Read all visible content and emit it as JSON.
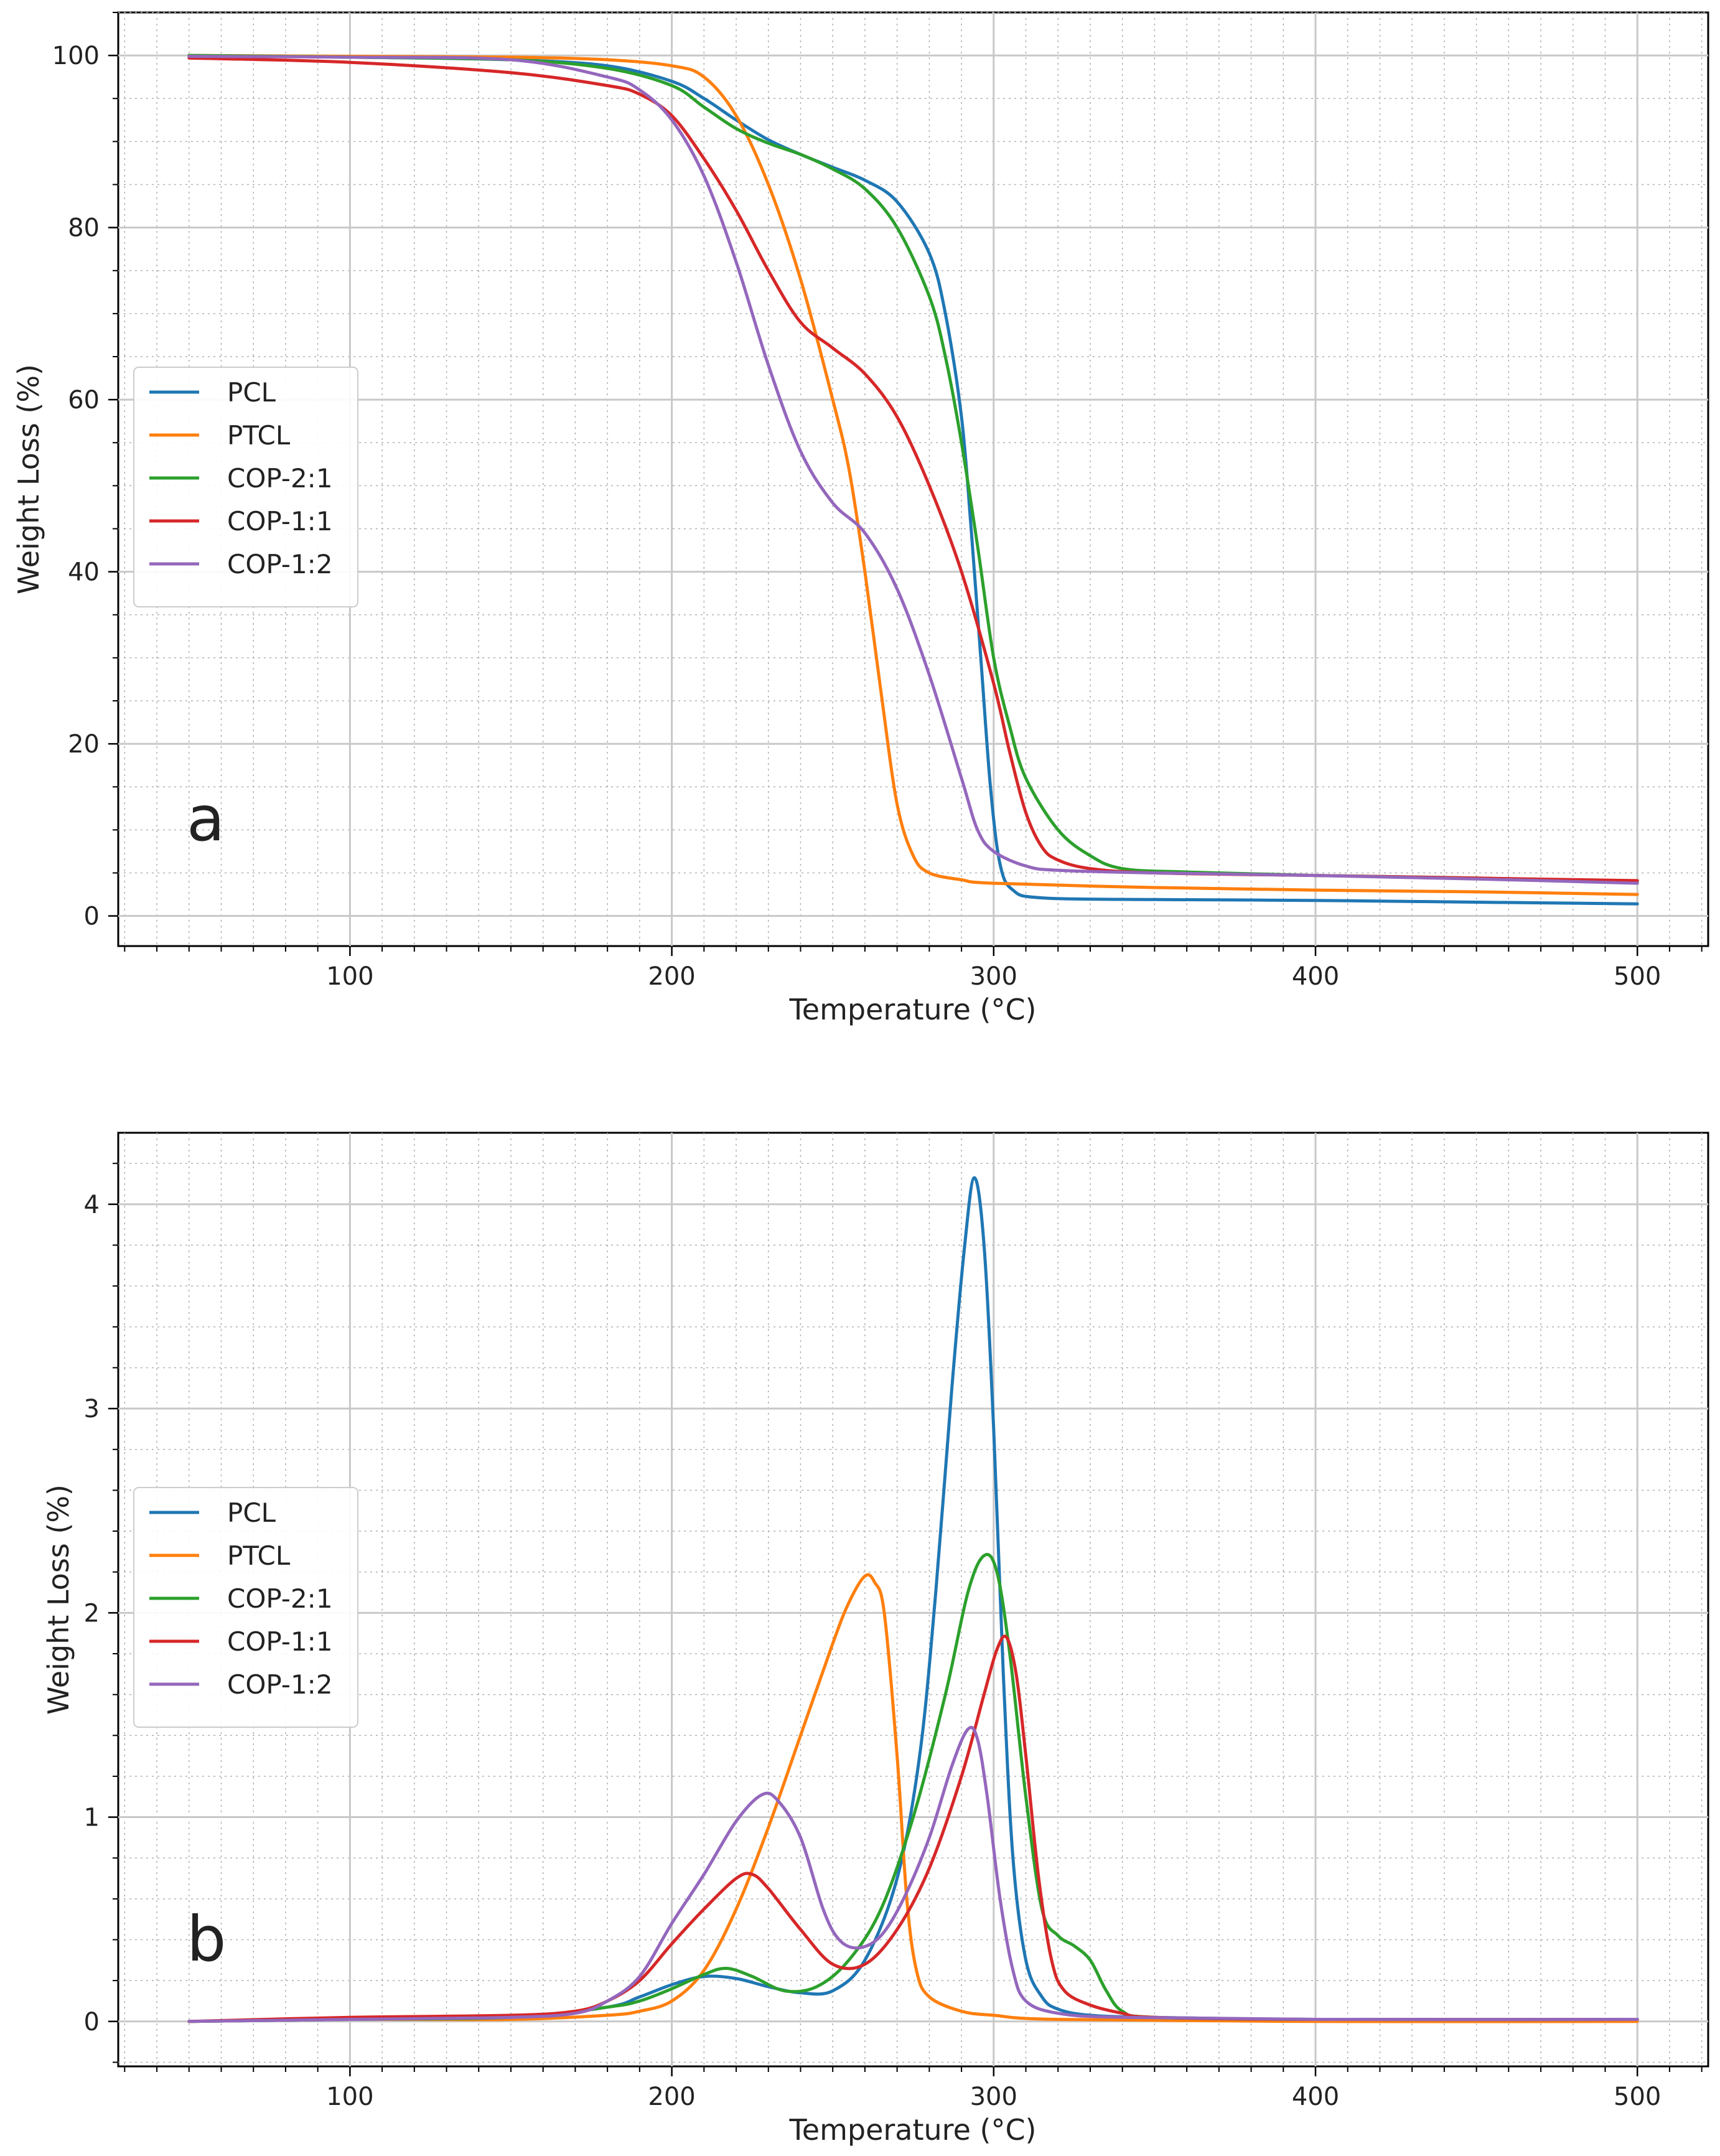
{
  "chart_data": [
    {
      "type": "line",
      "panel_label": "a",
      "xlabel": "Temperature (°C)",
      "ylabel": "Weight Loss (%)",
      "xlim": [
        28,
        522
      ],
      "ylim": [
        -3.5,
        105
      ],
      "x_ticks": [
        100,
        200,
        300,
        400,
        500
      ],
      "y_ticks": [
        0,
        20,
        40,
        60,
        80,
        100
      ],
      "x_minor_step": 10,
      "y_minor_step": 5,
      "grid": true,
      "legend_position": "center-left",
      "series": [
        {
          "name": "PCL",
          "color": "#1f77b4",
          "points": [
            [
              50,
              100
            ],
            [
              100,
              99.8
            ],
            [
              150,
              99.5
            ],
            [
              180,
              98.8
            ],
            [
              200,
              97
            ],
            [
              210,
              95
            ],
            [
              220,
              92.5
            ],
            [
              230,
              90.2
            ],
            [
              240,
              88.5
            ],
            [
              250,
              87
            ],
            [
              260,
              85.5
            ],
            [
              270,
              83
            ],
            [
              280,
              77
            ],
            [
              285,
              70
            ],
            [
              290,
              58
            ],
            [
              293,
              45
            ],
            [
              296,
              30
            ],
            [
              299,
              15
            ],
            [
              302,
              6
            ],
            [
              306,
              3
            ],
            [
              315,
              2.1
            ],
            [
              350,
              1.9
            ],
            [
              400,
              1.8
            ],
            [
              450,
              1.6
            ],
            [
              500,
              1.4
            ]
          ]
        },
        {
          "name": "PTCL",
          "color": "#ff7f0e",
          "points": [
            [
              50,
              100
            ],
            [
              100,
              99.9
            ],
            [
              150,
              99.8
            ],
            [
              180,
              99.5
            ],
            [
              200,
              98.8
            ],
            [
              210,
              97.5
            ],
            [
              220,
              93
            ],
            [
              230,
              85
            ],
            [
              240,
              74
            ],
            [
              250,
              60
            ],
            [
              255,
              52
            ],
            [
              260,
              40
            ],
            [
              265,
              26
            ],
            [
              270,
              13
            ],
            [
              275,
              7
            ],
            [
              280,
              5
            ],
            [
              290,
              4.2
            ],
            [
              300,
              3.8
            ],
            [
              350,
              3.3
            ],
            [
              400,
              3
            ],
            [
              450,
              2.8
            ],
            [
              500,
              2.5
            ]
          ]
        },
        {
          "name": "COP-2:1",
          "color": "#2ca02c",
          "points": [
            [
              50,
              100
            ],
            [
              100,
              99.8
            ],
            [
              150,
              99.5
            ],
            [
              180,
              98.5
            ],
            [
              200,
              96.5
            ],
            [
              210,
              94
            ],
            [
              220,
              91.5
            ],
            [
              230,
              89.8
            ],
            [
              240,
              88.5
            ],
            [
              250,
              86.8
            ],
            [
              260,
              84.5
            ],
            [
              270,
              80
            ],
            [
              280,
              72
            ],
            [
              285,
              65
            ],
            [
              290,
              55
            ],
            [
              295,
              43
            ],
            [
              300,
              30
            ],
            [
              305,
              22
            ],
            [
              310,
              16
            ],
            [
              320,
              10
            ],
            [
              330,
              7
            ],
            [
              340,
              5.5
            ],
            [
              360,
              5.1
            ],
            [
              400,
              4.7
            ],
            [
              450,
              4.4
            ],
            [
              500,
              3.9
            ]
          ]
        },
        {
          "name": "COP-1:1",
          "color": "#d62728",
          "points": [
            [
              50,
              99.7
            ],
            [
              100,
              99.2
            ],
            [
              150,
              98
            ],
            [
              180,
              96.5
            ],
            [
              190,
              95.5
            ],
            [
              200,
              93
            ],
            [
              210,
              88
            ],
            [
              220,
              82
            ],
            [
              230,
              75
            ],
            [
              240,
              69
            ],
            [
              250,
              66
            ],
            [
              260,
              63
            ],
            [
              270,
              58
            ],
            [
              280,
              50
            ],
            [
              290,
              40
            ],
            [
              300,
              27
            ],
            [
              305,
              19
            ],
            [
              310,
              12
            ],
            [
              315,
              8
            ],
            [
              320,
              6.5
            ],
            [
              330,
              5.5
            ],
            [
              350,
              5
            ],
            [
              400,
              4.7
            ],
            [
              450,
              4.4
            ],
            [
              500,
              4.1
            ]
          ]
        },
        {
          "name": "COP-1:2",
          "color": "#9467bd",
          "points": [
            [
              50,
              99.9
            ],
            [
              100,
              99.8
            ],
            [
              150,
              99.5
            ],
            [
              180,
              97.5
            ],
            [
              190,
              96
            ],
            [
              200,
              92.5
            ],
            [
              210,
              86
            ],
            [
              220,
              76
            ],
            [
              230,
              64
            ],
            [
              240,
              54
            ],
            [
              250,
              48
            ],
            [
              260,
              44.5
            ],
            [
              270,
              38
            ],
            [
              280,
              28
            ],
            [
              290,
              16
            ],
            [
              295,
              10
            ],
            [
              300,
              7.5
            ],
            [
              310,
              5.8
            ],
            [
              320,
              5.3
            ],
            [
              350,
              5
            ],
            [
              400,
              4.7
            ],
            [
              450,
              4.3
            ],
            [
              500,
              3.8
            ]
          ]
        }
      ]
    },
    {
      "type": "line",
      "panel_label": "b",
      "xlabel": "Temperature (°C)",
      "ylabel": "Weight Loss (%)",
      "xlim": [
        28,
        522
      ],
      "ylim": [
        -0.22,
        4.35
      ],
      "x_ticks": [
        100,
        200,
        300,
        400,
        500
      ],
      "y_ticks": [
        0,
        1,
        2,
        3,
        4
      ],
      "x_minor_step": 10,
      "y_minor_step": 0.2,
      "grid": true,
      "legend_position": "center-left",
      "series": [
        {
          "name": "PCL",
          "color": "#1f77b4",
          "points": [
            [
              50,
              0
            ],
            [
              100,
              0.01
            ],
            [
              150,
              0.02
            ],
            [
              180,
              0.07
            ],
            [
              190,
              0.12
            ],
            [
              200,
              0.18
            ],
            [
              210,
              0.22
            ],
            [
              220,
              0.21
            ],
            [
              230,
              0.17
            ],
            [
              240,
              0.14
            ],
            [
              250,
              0.15
            ],
            [
              260,
              0.3
            ],
            [
              270,
              0.7
            ],
            [
              277,
              1.3
            ],
            [
              282,
              2.1
            ],
            [
              287,
              3.1
            ],
            [
              291,
              3.8
            ],
            [
              294,
              4.13
            ],
            [
              297,
              3.8
            ],
            [
              300,
              2.9
            ],
            [
              303,
              1.7
            ],
            [
              306,
              0.8
            ],
            [
              310,
              0.3
            ],
            [
              315,
              0.12
            ],
            [
              320,
              0.06
            ],
            [
              330,
              0.03
            ],
            [
              350,
              0.02
            ],
            [
              400,
              0.01
            ],
            [
              500,
              0.01
            ]
          ]
        },
        {
          "name": "PTCL",
          "color": "#ff7f0e",
          "points": [
            [
              50,
              0
            ],
            [
              100,
              0.01
            ],
            [
              150,
              0.01
            ],
            [
              180,
              0.03
            ],
            [
              190,
              0.05
            ],
            [
              200,
              0.1
            ],
            [
              210,
              0.25
            ],
            [
              220,
              0.55
            ],
            [
              230,
              0.95
            ],
            [
              240,
              1.4
            ],
            [
              250,
              1.85
            ],
            [
              255,
              2.05
            ],
            [
              260,
              2.18
            ],
            [
              263,
              2.15
            ],
            [
              266,
              2.0
            ],
            [
              270,
              1.3
            ],
            [
              273,
              0.6
            ],
            [
              276,
              0.25
            ],
            [
              280,
              0.12
            ],
            [
              290,
              0.05
            ],
            [
              300,
              0.03
            ],
            [
              320,
              0.01
            ],
            [
              400,
              0
            ],
            [
              500,
              0
            ]
          ]
        },
        {
          "name": "COP-2:1",
          "color": "#2ca02c",
          "points": [
            [
              50,
              0
            ],
            [
              100,
              0.01
            ],
            [
              150,
              0.02
            ],
            [
              180,
              0.07
            ],
            [
              190,
              0.1
            ],
            [
              200,
              0.16
            ],
            [
              210,
              0.23
            ],
            [
              217,
              0.26
            ],
            [
              225,
              0.22
            ],
            [
              235,
              0.15
            ],
            [
              245,
              0.17
            ],
            [
              255,
              0.3
            ],
            [
              265,
              0.55
            ],
            [
              275,
              1.0
            ],
            [
              285,
              1.6
            ],
            [
              292,
              2.1
            ],
            [
              297,
              2.28
            ],
            [
              301,
              2.2
            ],
            [
              305,
              1.8
            ],
            [
              310,
              1.1
            ],
            [
              315,
              0.55
            ],
            [
              320,
              0.42
            ],
            [
              325,
              0.37
            ],
            [
              330,
              0.3
            ],
            [
              335,
              0.15
            ],
            [
              340,
              0.05
            ],
            [
              350,
              0.02
            ],
            [
              400,
              0.01
            ],
            [
              500,
              0.01
            ]
          ]
        },
        {
          "name": "COP-1:1",
          "color": "#d62728",
          "points": [
            [
              50,
              0
            ],
            [
              100,
              0.02
            ],
            [
              150,
              0.03
            ],
            [
              170,
              0.05
            ],
            [
              180,
              0.1
            ],
            [
              190,
              0.2
            ],
            [
              200,
              0.38
            ],
            [
              210,
              0.55
            ],
            [
              220,
              0.7
            ],
            [
              225,
              0.72
            ],
            [
              230,
              0.65
            ],
            [
              240,
              0.45
            ],
            [
              250,
              0.28
            ],
            [
              260,
              0.28
            ],
            [
              270,
              0.45
            ],
            [
              280,
              0.75
            ],
            [
              290,
              1.2
            ],
            [
              297,
              1.6
            ],
            [
              301,
              1.82
            ],
            [
              304,
              1.88
            ],
            [
              307,
              1.7
            ],
            [
              310,
              1.3
            ],
            [
              314,
              0.7
            ],
            [
              318,
              0.3
            ],
            [
              322,
              0.15
            ],
            [
              330,
              0.08
            ],
            [
              340,
              0.04
            ],
            [
              350,
              0.02
            ],
            [
              400,
              0.01
            ],
            [
              500,
              0.01
            ]
          ]
        },
        {
          "name": "COP-1:2",
          "color": "#9467bd",
          "points": [
            [
              50,
              0
            ],
            [
              100,
              0.01
            ],
            [
              150,
              0.02
            ],
            [
              170,
              0.04
            ],
            [
              180,
              0.1
            ],
            [
              190,
              0.22
            ],
            [
              200,
              0.48
            ],
            [
              210,
              0.72
            ],
            [
              220,
              0.98
            ],
            [
              228,
              1.11
            ],
            [
              233,
              1.08
            ],
            [
              240,
              0.9
            ],
            [
              247,
              0.55
            ],
            [
              252,
              0.4
            ],
            [
              258,
              0.36
            ],
            [
              265,
              0.42
            ],
            [
              272,
              0.6
            ],
            [
              280,
              0.9
            ],
            [
              287,
              1.25
            ],
            [
              292,
              1.43
            ],
            [
              295,
              1.38
            ],
            [
              298,
              1.1
            ],
            [
              302,
              0.6
            ],
            [
              306,
              0.25
            ],
            [
              310,
              0.1
            ],
            [
              320,
              0.04
            ],
            [
              340,
              0.02
            ],
            [
              400,
              0.01
            ],
            [
              500,
              0.01
            ]
          ]
        }
      ]
    }
  ]
}
